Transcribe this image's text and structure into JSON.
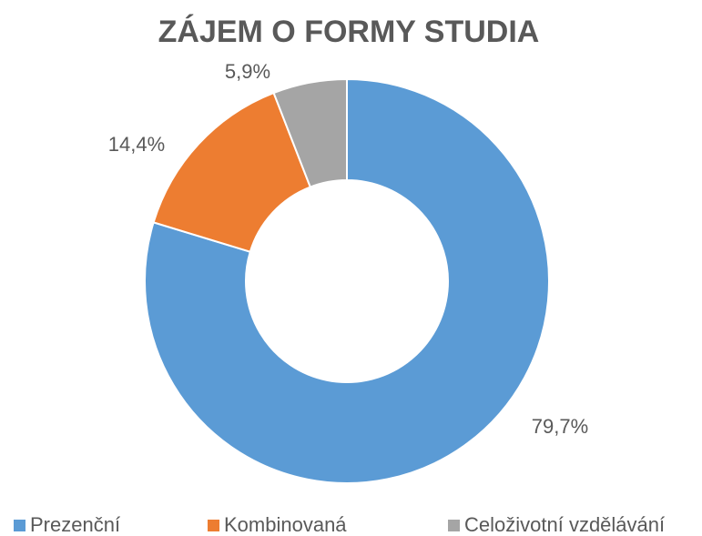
{
  "chart_data": {
    "type": "donut",
    "title": "ZÁJEM O FORMY STUDIA",
    "categories": [
      "Prezenční",
      "Kombinovaná",
      "Celoživotní vzdělávání"
    ],
    "values": [
      79.7,
      14.4,
      5.9
    ],
    "value_labels": [
      "79,7%",
      "14,4%",
      "5,9%"
    ],
    "colors": [
      "#5b9bd5",
      "#ed7d31",
      "#a5a5a5"
    ],
    "legend": "bottom"
  }
}
